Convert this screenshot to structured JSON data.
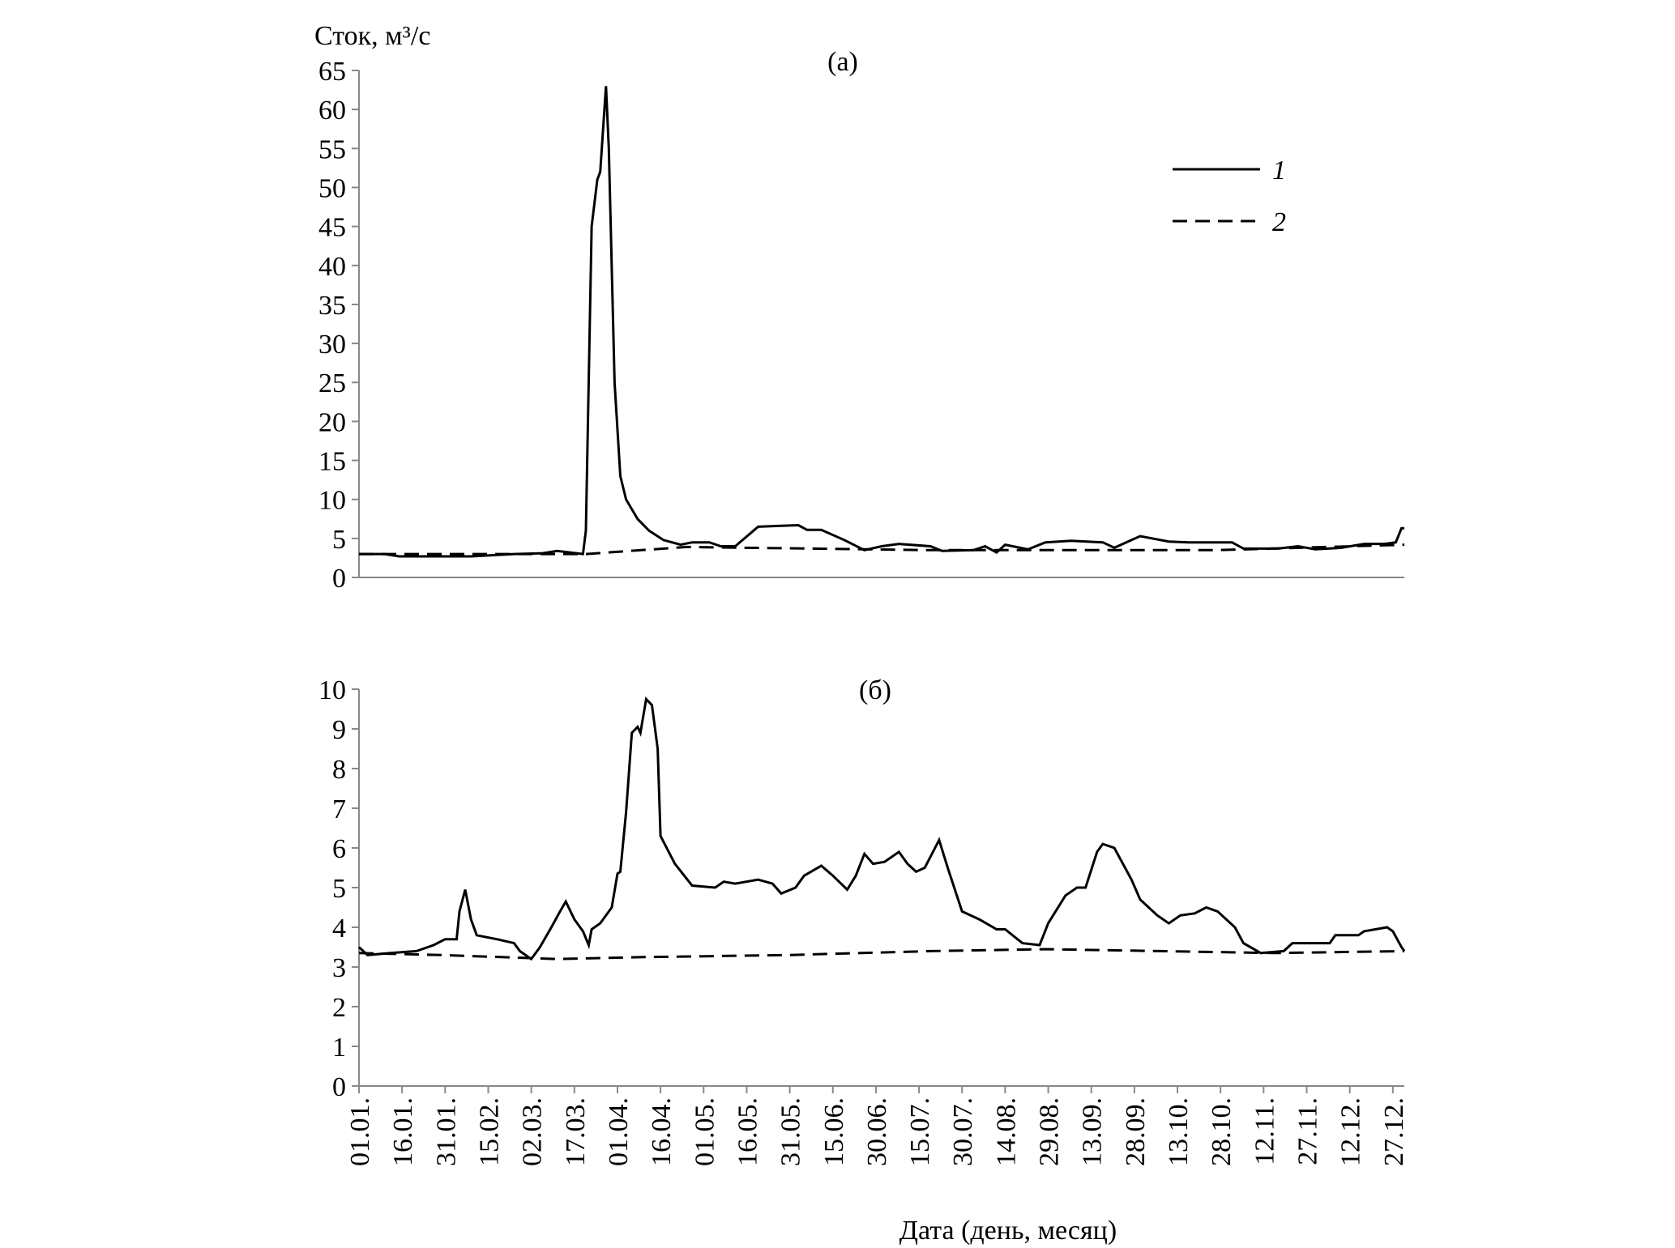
{
  "chart_data": [
    {
      "type": "line",
      "title": "(а)",
      "ylabel": "Сток, м³/с",
      "xlim": [
        1,
        365
      ],
      "ylim": [
        0,
        65
      ],
      "yticks": [
        0,
        5,
        10,
        15,
        20,
        25,
        30,
        35,
        40,
        45,
        50,
        55,
        60,
        65
      ],
      "legend": "upper right",
      "series": [
        {
          "name": "1",
          "color": "#000000",
          "line_style": "solid",
          "x": [
            1,
            10,
            15,
            40,
            55,
            65,
            70,
            79,
            80,
            82,
            84,
            85,
            87,
            88,
            90,
            92,
            94,
            98,
            102,
            107,
            113,
            117,
            123,
            127,
            132,
            140,
            147,
            154,
            157,
            162,
            170,
            177,
            183,
            189,
            200,
            204,
            215,
            219,
            223,
            226,
            234,
            240,
            249,
            260,
            264,
            273,
            283,
            290,
            305,
            309,
            321,
            328,
            334,
            343,
            351,
            358,
            362,
            364,
            365
          ],
          "values": [
            3,
            3,
            2.7,
            2.7,
            3,
            3.1,
            3.4,
            3,
            6,
            45,
            51,
            52,
            63,
            55,
            25,
            13,
            10,
            7.5,
            6,
            4.8,
            4.2,
            4.5,
            4.5,
            4,
            4,
            6.5,
            6.6,
            6.7,
            6.1,
            6.1,
            4.8,
            3.5,
            4,
            4.3,
            4,
            3.4,
            3.5,
            4,
            3.2,
            4.2,
            3.6,
            4.5,
            4.7,
            4.5,
            3.8,
            5.3,
            4.6,
            4.5,
            4.5,
            3.7,
            3.7,
            4,
            3.6,
            3.8,
            4.3,
            4.3,
            4.5,
            6.3,
            6.3
          ]
        },
        {
          "name": "2",
          "color": "#000000",
          "line_style": "dashed",
          "x": [
            1,
            80,
            115,
            200,
            300,
            365
          ],
          "values": [
            3,
            3,
            3.9,
            3.5,
            3.5,
            4.2
          ]
        }
      ]
    },
    {
      "type": "line",
      "title": "(б)",
      "xlabel": "Дата (день, месяц)",
      "xlim": [
        1,
        365
      ],
      "ylim": [
        0,
        10
      ],
      "yticks": [
        0,
        1,
        2,
        3,
        4,
        5,
        6,
        7,
        8,
        9,
        10
      ],
      "xticks": [
        {
          "value": 1,
          "label": "01.01."
        },
        {
          "value": 16,
          "label": "16.01."
        },
        {
          "value": 31,
          "label": "31.01."
        },
        {
          "value": 46,
          "label": "15.02."
        },
        {
          "value": 61,
          "label": "02.03."
        },
        {
          "value": 76,
          "label": "17.03."
        },
        {
          "value": 91,
          "label": "01.04."
        },
        {
          "value": 106,
          "label": "16.04."
        },
        {
          "value": 121,
          "label": "01.05."
        },
        {
          "value": 136,
          "label": "16.05."
        },
        {
          "value": 151,
          "label": "31.05."
        },
        {
          "value": 166,
          "label": "15.06."
        },
        {
          "value": 181,
          "label": "30.06."
        },
        {
          "value": 196,
          "label": "15.07."
        },
        {
          "value": 211,
          "label": "30.07."
        },
        {
          "value": 226,
          "label": "14.08."
        },
        {
          "value": 241,
          "label": "29.08."
        },
        {
          "value": 256,
          "label": "13.09."
        },
        {
          "value": 271,
          "label": "28.09."
        },
        {
          "value": 286,
          "label": "13.10."
        },
        {
          "value": 301,
          "label": "28.10."
        },
        {
          "value": 316,
          "label": "12.11."
        },
        {
          "value": 331,
          "label": "27.11."
        },
        {
          "value": 346,
          "label": "12.12."
        },
        {
          "value": 361,
          "label": "27.12."
        }
      ],
      "series": [
        {
          "color": "#000000",
          "line_style": "solid",
          "x": [
            1,
            4,
            12,
            21,
            27,
            31,
            35,
            36,
            38,
            40,
            42,
            49,
            55,
            57,
            61,
            64,
            68,
            71,
            73,
            76,
            79,
            81,
            82,
            85,
            89,
            91,
            92,
            94,
            96,
            98,
            99,
            101,
            103,
            105,
            106,
            111,
            117,
            125,
            128,
            132,
            140,
            145,
            148,
            153,
            156,
            162,
            166,
            171,
            174,
            177,
            180,
            184,
            189,
            192,
            195,
            198,
            203,
            206,
            211,
            217,
            223,
            226,
            232,
            238,
            241,
            247,
            251,
            254,
            258,
            260,
            264,
            270,
            273,
            279,
            283,
            287,
            292,
            296,
            300,
            306,
            309,
            315,
            323,
            326,
            339,
            341,
            349,
            351,
            359,
            361,
            364,
            365
          ],
          "values": [
            3.5,
            3.3,
            3.35,
            3.4,
            3.55,
            3.7,
            3.7,
            4.4,
            4.95,
            4.2,
            3.8,
            3.7,
            3.6,
            3.4,
            3.2,
            3.5,
            4,
            4.4,
            4.65,
            4.2,
            3.9,
            3.55,
            3.95,
            4.1,
            4.5,
            5.35,
            5.4,
            6.9,
            8.9,
            9.05,
            8.9,
            9.75,
            9.6,
            8.5,
            6.3,
            5.6,
            5.05,
            5,
            5.15,
            5.1,
            5.2,
            5.1,
            4.85,
            5,
            5.3,
            5.55,
            5.3,
            4.95,
            5.3,
            5.85,
            5.6,
            5.65,
            5.9,
            5.6,
            5.4,
            5.5,
            6.2,
            5.5,
            4.4,
            4.2,
            3.95,
            3.95,
            3.6,
            3.55,
            4.1,
            4.8,
            5,
            5,
            5.9,
            6.1,
            6,
            5.2,
            4.7,
            4.3,
            4.1,
            4.3,
            4.35,
            4.5,
            4.4,
            4,
            3.6,
            3.35,
            3.4,
            3.6,
            3.6,
            3.8,
            3.8,
            3.9,
            4,
            3.9,
            3.5,
            3.4
          ]
        },
        {
          "color": "#000000",
          "line_style": "dashed",
          "x": [
            1,
            30,
            70,
            100,
            150,
            200,
            240,
            280,
            320,
            365
          ],
          "values": [
            3.35,
            3.3,
            3.2,
            3.25,
            3.3,
            3.4,
            3.45,
            3.4,
            3.35,
            3.4
          ]
        }
      ]
    }
  ]
}
